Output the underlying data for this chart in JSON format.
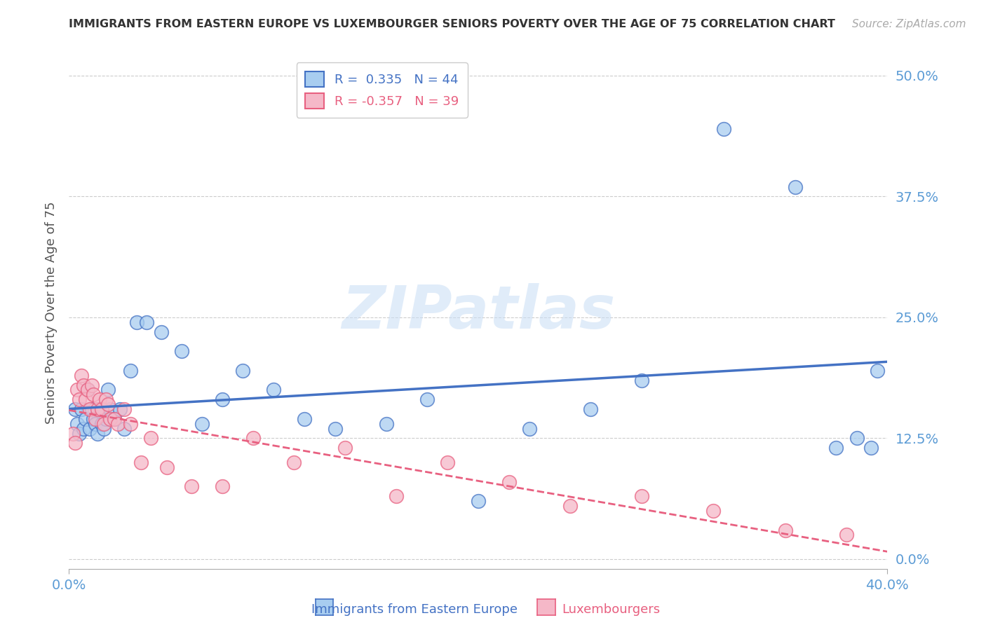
{
  "title": "IMMIGRANTS FROM EASTERN EUROPE VS LUXEMBOURGER SENIORS POVERTY OVER THE AGE OF 75 CORRELATION CHART",
  "source": "Source: ZipAtlas.com",
  "xlabel_blue": "Immigrants from Eastern Europe",
  "xlabel_pink": "Luxembourgers",
  "ylabel": "Seniors Poverty Over the Age of 75",
  "watermark": "ZIPatlas",
  "blue_R": 0.335,
  "blue_N": 44,
  "pink_R": -0.357,
  "pink_N": 39,
  "xlim": [
    0.0,
    0.4
  ],
  "ylim": [
    -0.01,
    0.52
  ],
  "yticks": [
    0.0,
    0.125,
    0.25,
    0.375,
    0.5
  ],
  "ytick_labels": [
    "0.0%",
    "12.5%",
    "25.0%",
    "37.5%",
    "50.0%"
  ],
  "xticks": [
    0.0,
    0.4
  ],
  "xtick_labels": [
    "0.0%",
    "40.0%"
  ],
  "blue_color": "#a8cdf0",
  "pink_color": "#f5b8c8",
  "blue_line_color": "#4472c4",
  "pink_line_color": "#e86080",
  "blue_scatter_x": [
    0.003,
    0.004,
    0.005,
    0.006,
    0.007,
    0.008,
    0.009,
    0.01,
    0.011,
    0.012,
    0.013,
    0.014,
    0.015,
    0.016,
    0.017,
    0.018,
    0.019,
    0.02,
    0.022,
    0.025,
    0.027,
    0.03,
    0.033,
    0.038,
    0.045,
    0.055,
    0.065,
    0.075,
    0.085,
    0.1,
    0.115,
    0.13,
    0.155,
    0.175,
    0.2,
    0.225,
    0.255,
    0.28,
    0.32,
    0.355,
    0.375,
    0.385,
    0.392,
    0.395
  ],
  "blue_scatter_y": [
    0.155,
    0.14,
    0.13,
    0.155,
    0.135,
    0.145,
    0.175,
    0.135,
    0.155,
    0.145,
    0.14,
    0.13,
    0.155,
    0.14,
    0.135,
    0.145,
    0.175,
    0.155,
    0.145,
    0.155,
    0.135,
    0.195,
    0.245,
    0.245,
    0.235,
    0.215,
    0.14,
    0.165,
    0.195,
    0.175,
    0.145,
    0.135,
    0.14,
    0.165,
    0.06,
    0.135,
    0.155,
    0.185,
    0.445,
    0.385,
    0.115,
    0.125,
    0.115,
    0.195
  ],
  "pink_scatter_x": [
    0.002,
    0.003,
    0.004,
    0.005,
    0.006,
    0.007,
    0.008,
    0.009,
    0.01,
    0.011,
    0.012,
    0.013,
    0.014,
    0.015,
    0.016,
    0.017,
    0.018,
    0.019,
    0.02,
    0.022,
    0.024,
    0.027,
    0.03,
    0.035,
    0.04,
    0.048,
    0.06,
    0.075,
    0.09,
    0.11,
    0.135,
    0.16,
    0.185,
    0.215,
    0.245,
    0.28,
    0.315,
    0.35,
    0.38
  ],
  "pink_scatter_y": [
    0.13,
    0.12,
    0.175,
    0.165,
    0.19,
    0.18,
    0.165,
    0.175,
    0.155,
    0.18,
    0.17,
    0.145,
    0.155,
    0.165,
    0.155,
    0.14,
    0.165,
    0.16,
    0.145,
    0.145,
    0.14,
    0.155,
    0.14,
    0.1,
    0.125,
    0.095,
    0.075,
    0.075,
    0.125,
    0.1,
    0.115,
    0.065,
    0.1,
    0.08,
    0.055,
    0.065,
    0.05,
    0.03,
    0.025
  ],
  "background_color": "#ffffff",
  "grid_color": "#cccccc",
  "tick_label_color": "#5b9bd5",
  "title_color": "#333333"
}
